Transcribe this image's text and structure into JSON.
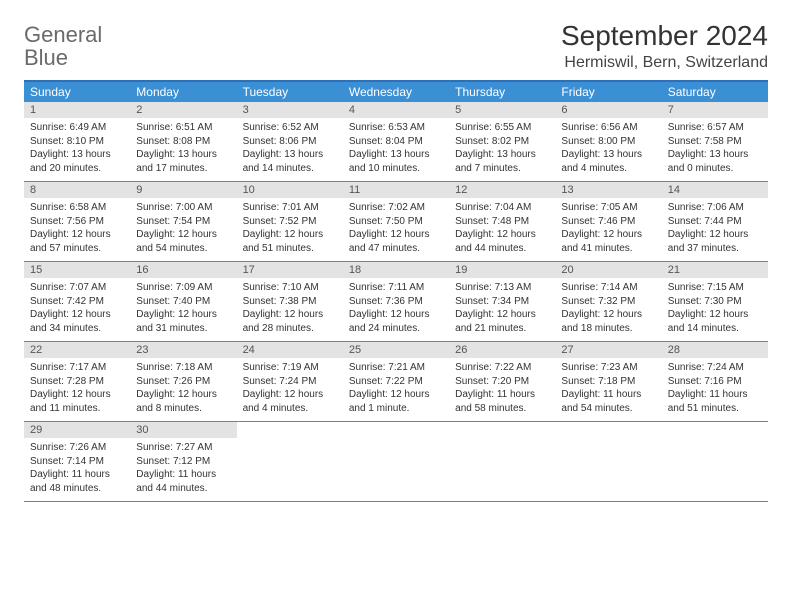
{
  "logo": {
    "word1": "General",
    "word2": "Blue"
  },
  "title": "September 2024",
  "location": "Hermiswil, Bern, Switzerland",
  "colors": {
    "header_bar": "#3b8fd4",
    "border": "#2f6fb5",
    "daynum_bg": "#e3e3e3",
    "text": "#333333",
    "logo_gray": "#6a6a6a",
    "logo_blue": "#3b7fc4"
  },
  "dow": [
    "Sunday",
    "Monday",
    "Tuesday",
    "Wednesday",
    "Thursday",
    "Friday",
    "Saturday"
  ],
  "days": [
    {
      "n": "1",
      "sr": "6:49 AM",
      "ss": "8:10 PM",
      "dl": "13 hours and 20 minutes."
    },
    {
      "n": "2",
      "sr": "6:51 AM",
      "ss": "8:08 PM",
      "dl": "13 hours and 17 minutes."
    },
    {
      "n": "3",
      "sr": "6:52 AM",
      "ss": "8:06 PM",
      "dl": "13 hours and 14 minutes."
    },
    {
      "n": "4",
      "sr": "6:53 AM",
      "ss": "8:04 PM",
      "dl": "13 hours and 10 minutes."
    },
    {
      "n": "5",
      "sr": "6:55 AM",
      "ss": "8:02 PM",
      "dl": "13 hours and 7 minutes."
    },
    {
      "n": "6",
      "sr": "6:56 AM",
      "ss": "8:00 PM",
      "dl": "13 hours and 4 minutes."
    },
    {
      "n": "7",
      "sr": "6:57 AM",
      "ss": "7:58 PM",
      "dl": "13 hours and 0 minutes."
    },
    {
      "n": "8",
      "sr": "6:58 AM",
      "ss": "7:56 PM",
      "dl": "12 hours and 57 minutes."
    },
    {
      "n": "9",
      "sr": "7:00 AM",
      "ss": "7:54 PM",
      "dl": "12 hours and 54 minutes."
    },
    {
      "n": "10",
      "sr": "7:01 AM",
      "ss": "7:52 PM",
      "dl": "12 hours and 51 minutes."
    },
    {
      "n": "11",
      "sr": "7:02 AM",
      "ss": "7:50 PM",
      "dl": "12 hours and 47 minutes."
    },
    {
      "n": "12",
      "sr": "7:04 AM",
      "ss": "7:48 PM",
      "dl": "12 hours and 44 minutes."
    },
    {
      "n": "13",
      "sr": "7:05 AM",
      "ss": "7:46 PM",
      "dl": "12 hours and 41 minutes."
    },
    {
      "n": "14",
      "sr": "7:06 AM",
      "ss": "7:44 PM",
      "dl": "12 hours and 37 minutes."
    },
    {
      "n": "15",
      "sr": "7:07 AM",
      "ss": "7:42 PM",
      "dl": "12 hours and 34 minutes."
    },
    {
      "n": "16",
      "sr": "7:09 AM",
      "ss": "7:40 PM",
      "dl": "12 hours and 31 minutes."
    },
    {
      "n": "17",
      "sr": "7:10 AM",
      "ss": "7:38 PM",
      "dl": "12 hours and 28 minutes."
    },
    {
      "n": "18",
      "sr": "7:11 AM",
      "ss": "7:36 PM",
      "dl": "12 hours and 24 minutes."
    },
    {
      "n": "19",
      "sr": "7:13 AM",
      "ss": "7:34 PM",
      "dl": "12 hours and 21 minutes."
    },
    {
      "n": "20",
      "sr": "7:14 AM",
      "ss": "7:32 PM",
      "dl": "12 hours and 18 minutes."
    },
    {
      "n": "21",
      "sr": "7:15 AM",
      "ss": "7:30 PM",
      "dl": "12 hours and 14 minutes."
    },
    {
      "n": "22",
      "sr": "7:17 AM",
      "ss": "7:28 PM",
      "dl": "12 hours and 11 minutes."
    },
    {
      "n": "23",
      "sr": "7:18 AM",
      "ss": "7:26 PM",
      "dl": "12 hours and 8 minutes."
    },
    {
      "n": "24",
      "sr": "7:19 AM",
      "ss": "7:24 PM",
      "dl": "12 hours and 4 minutes."
    },
    {
      "n": "25",
      "sr": "7:21 AM",
      "ss": "7:22 PM",
      "dl": "12 hours and 1 minute."
    },
    {
      "n": "26",
      "sr": "7:22 AM",
      "ss": "7:20 PM",
      "dl": "11 hours and 58 minutes."
    },
    {
      "n": "27",
      "sr": "7:23 AM",
      "ss": "7:18 PM",
      "dl": "11 hours and 54 minutes."
    },
    {
      "n": "28",
      "sr": "7:24 AM",
      "ss": "7:16 PM",
      "dl": "11 hours and 51 minutes."
    },
    {
      "n": "29",
      "sr": "7:26 AM",
      "ss": "7:14 PM",
      "dl": "11 hours and 48 minutes."
    },
    {
      "n": "30",
      "sr": "7:27 AM",
      "ss": "7:12 PM",
      "dl": "11 hours and 44 minutes."
    }
  ],
  "labels": {
    "sunrise": "Sunrise:",
    "sunset": "Sunset:",
    "daylight": "Daylight:"
  }
}
